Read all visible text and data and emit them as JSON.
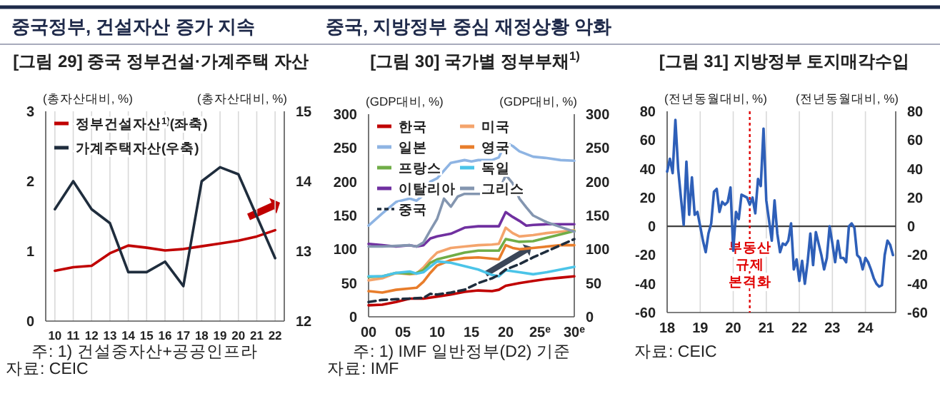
{
  "chart_data": [
    {
      "type": "line",
      "subtitle": "중국정부, 건설자산 증가 지속",
      "title": "[그림 29] 중국 정부건설·가계주택 자산",
      "ylabel": "(총자산대비, %)",
      "y2label": "(총자산대비, %)",
      "categories": [
        "10",
        "11",
        "12",
        "13",
        "14",
        "15",
        "16",
        "17",
        "18",
        "19",
        "20",
        "21",
        "22"
      ],
      "series": [
        {
          "name": "정부건설자산$^{1)}$(좌축)",
          "color": "#c00000",
          "values": [
            0.72,
            0.77,
            0.79,
            0.97,
            1.08,
            1.05,
            1.01,
            1.03,
            1.07,
            1.11,
            1.15,
            1.21,
            1.3
          ]
        },
        {
          "name": "가계주택자산(우축)",
          "color": "#1f2d3d",
          "axis": "y2",
          "values": [
            13.6,
            14.0,
            13.6,
            13.4,
            12.7,
            12.7,
            12.85,
            12.5,
            14.0,
            14.2,
            14.1,
            13.5,
            12.9
          ]
        }
      ],
      "ylim": [
        0,
        3
      ],
      "yticks": [
        0,
        1,
        2,
        3
      ],
      "y2lim": [
        12,
        15
      ],
      "y2ticks": [
        12,
        13,
        14,
        15
      ],
      "grid": "x",
      "legend": "top left",
      "annotations": [
        "주: 1) 건설중자산+공공인프라",
        "자료: CEIC"
      ]
    },
    {
      "type": "line",
      "subtitle": "중국, 지방정부 중심 재정상황 악화",
      "title": "[그림 30] 국가별 정부부채$^{1)}$",
      "ylabel": "(GDP대비, %)",
      "y2label": "(GDP대비, %)",
      "xlim": [
        0,
        30
      ],
      "xticks": [
        {
          "value": 0,
          "label": "00"
        },
        {
          "value": 5,
          "label": "05"
        },
        10,
        15,
        20,
        {
          "value": 25,
          "label": "25$^{e}$"
        },
        {
          "value": 30,
          "label": "30$^{e}$"
        }
      ],
      "series": [
        {
          "name": "한국",
          "color": "#c00000",
          "x": [
            0,
            2,
            4,
            6,
            8,
            10,
            12,
            14,
            16,
            18,
            19,
            20,
            22,
            24,
            26,
            28,
            30
          ],
          "values": [
            17,
            18,
            22,
            27,
            27,
            30,
            33,
            37,
            39,
            38,
            40,
            46,
            50,
            53,
            56,
            58,
            60
          ]
        },
        {
          "name": "미국",
          "color": "#f4a46c",
          "x": [
            0,
            2,
            4,
            6,
            7,
            8,
            9,
            10,
            12,
            14,
            16,
            18,
            19,
            20,
            21,
            22,
            24,
            26,
            28,
            30
          ],
          "values": [
            54,
            57,
            65,
            63,
            64,
            73,
            85,
            95,
            102,
            104,
            106,
            107,
            108,
            132,
            124,
            119,
            121,
            124,
            126,
            128
          ]
        },
        {
          "name": "일본",
          "color": "#8eb4e3",
          "x": [
            0,
            2,
            4,
            6,
            7,
            8,
            9,
            10,
            12,
            14,
            15,
            16,
            18,
            19,
            20,
            21,
            22,
            24,
            26,
            28,
            30
          ],
          "values": [
            135,
            153,
            170,
            175,
            172,
            180,
            200,
            205,
            228,
            232,
            230,
            232,
            232,
            236,
            258,
            253,
            245,
            237,
            235,
            232,
            231
          ]
        },
        {
          "name": "영국",
          "color": "#e87d2b",
          "x": [
            0,
            2,
            4,
            6,
            7,
            8,
            9,
            10,
            12,
            14,
            16,
            18,
            19,
            20,
            21,
            22,
            24,
            26,
            28,
            30
          ],
          "values": [
            38,
            36,
            40,
            42,
            43,
            52,
            65,
            76,
            84,
            87,
            88,
            86,
            85,
            106,
            102,
            100,
            102,
            104,
            106,
            106
          ]
        },
        {
          "name": "프랑스",
          "color": "#70ad47",
          "x": [
            0,
            2,
            4,
            6,
            7,
            8,
            9,
            10,
            12,
            14,
            16,
            18,
            19,
            20,
            21,
            22,
            24,
            26,
            28,
            30
          ],
          "values": [
            59,
            60,
            65,
            64,
            65,
            69,
            80,
            85,
            90,
            95,
            98,
            98,
            98,
            115,
            113,
            111,
            112,
            117,
            122,
            127
          ]
        },
        {
          "name": "독일",
          "color": "#4bc4e8",
          "x": [
            0,
            2,
            4,
            6,
            7,
            8,
            9,
            10,
            12,
            14,
            16,
            18,
            19,
            20,
            22,
            24,
            26,
            28,
            30
          ],
          "values": [
            60,
            60,
            65,
            67,
            64,
            66,
            74,
            82,
            80,
            75,
            70,
            62,
            60,
            69,
            66,
            63,
            66,
            70,
            74
          ]
        },
        {
          "name": "이탈리아",
          "color": "#7030a0",
          "x": [
            0,
            2,
            4,
            6,
            7,
            8,
            9,
            10,
            12,
            14,
            16,
            18,
            19,
            20,
            21,
            22,
            23,
            24,
            26,
            28,
            30
          ],
          "values": [
            108,
            106,
            104,
            106,
            104,
            106,
            116,
            119,
            123,
            132,
            134,
            134,
            134,
            155,
            148,
            142,
            135,
            136,
            137,
            137,
            137
          ]
        },
        {
          "name": "그리스",
          "color": "#8496b0",
          "x": [
            0,
            2,
            4,
            6,
            7,
            8,
            9,
            10,
            11,
            12,
            13,
            14,
            16,
            17,
            18,
            19,
            20,
            21,
            22,
            23,
            24,
            26,
            28,
            30
          ],
          "values": [
            104,
            104,
            105,
            106,
            104,
            110,
            128,
            145,
            175,
            163,
            178,
            182,
            182,
            182,
            190,
            185,
            210,
            198,
            175,
            162,
            150,
            140,
            133,
            126
          ]
        },
        {
          "name": "중국",
          "color": "#1f2d3d",
          "line_style": "dashed",
          "x": [
            0,
            2,
            4,
            6,
            8,
            9,
            10,
            12,
            14,
            16,
            18,
            19,
            20,
            22,
            24,
            26,
            28,
            30
          ],
          "values": [
            22,
            25,
            26,
            27,
            28,
            34,
            33,
            36,
            40,
            50,
            57,
            62,
            70,
            78,
            88,
            97,
            106,
            115
          ]
        }
      ],
      "ylim": [
        0,
        300
      ],
      "yticks": [
        0,
        50,
        100,
        150,
        200,
        250,
        300
      ],
      "y2lim": [
        0,
        300
      ],
      "y2ticks": [
        0,
        50,
        100,
        150,
        200,
        250,
        300
      ],
      "legend": "top left",
      "annotations": [
        "주: 1) IMF 일반정부(D2) 기준",
        "자료: IMF"
      ]
    },
    {
      "type": "line",
      "title": "[그림 31] 지방정부 토지매각수입",
      "ylabel": "(전년동월대비, %)",
      "y2label": "(전년동월대비, %)",
      "x": [
        "2018-01",
        "2018-02",
        "2018-03",
        "2018-04",
        "2018-05",
        "2018-06",
        "2018-07",
        "2018-08",
        "2018-09",
        "2018-10",
        "2018-11",
        "2018-12",
        "2019-01",
        "2019-02",
        "2019-03",
        "2019-04",
        "2019-05",
        "2019-06",
        "2019-07",
        "2019-08",
        "2019-09",
        "2019-10",
        "2019-11",
        "2019-12",
        "2020-01",
        "2020-02",
        "2020-03",
        "2020-04",
        "2020-05",
        "2020-06",
        "2020-07",
        "2020-08",
        "2020-09",
        "2020-10",
        "2020-11",
        "2020-12",
        "2021-01",
        "2021-02",
        "2021-03",
        "2021-04",
        "2021-05",
        "2021-06",
        "2021-07",
        "2021-08",
        "2021-09",
        "2021-10",
        "2021-11",
        "2021-12",
        "2022-01",
        "2022-02",
        "2022-03",
        "2022-04",
        "2022-05",
        "2022-06",
        "2022-07",
        "2022-08",
        "2022-09",
        "2022-10",
        "2022-11",
        "2022-12",
        "2023-01",
        "2023-02",
        "2023-03",
        "2023-04",
        "2023-05",
        "2023-06",
        "2023-07",
        "2023-08",
        "2023-09",
        "2023-10",
        "2023-11",
        "2023-12",
        "2024-01",
        "2024-02",
        "2024-03",
        "2024-04",
        "2024-05",
        "2024-06",
        "2024-07",
        "2024-08",
        "2024-09",
        "2024-10",
        "2024-11"
      ],
      "series": [
        {
          "color": "#2e5fb8",
          "values": [
            38,
            47,
            37,
            74,
            40,
            20,
            1,
            45,
            8,
            34,
            8,
            10,
            0,
            -10,
            -18,
            -5,
            2,
            24,
            26,
            10,
            17,
            15,
            17,
            27,
            -17,
            10,
            5,
            22,
            21,
            20,
            15,
            20,
            9,
            33,
            28,
            68,
            18,
            4,
            -10,
            18,
            -5,
            -18,
            -12,
            -13,
            -10,
            2,
            -30,
            -23,
            -38,
            -24,
            -40,
            -25,
            -5,
            -27,
            -4,
            -12,
            -20,
            -30,
            -22,
            0,
            -12,
            -25,
            -10,
            -22,
            -22,
            -25,
            0,
            2,
            -1,
            -20,
            -22,
            -30,
            -22,
            -25,
            -30,
            -36,
            -40,
            -42,
            -41,
            -20,
            -10,
            -13,
            -20
          ]
        }
      ],
      "xlim": [
        "2018-01",
        "2024-12"
      ],
      "xticks": [
        {
          "value": "2018-01",
          "label": "18"
        },
        {
          "value": "2019-01",
          "label": "19"
        },
        {
          "value": "2020-01",
          "label": "20"
        },
        {
          "value": "2021-01",
          "label": "21"
        },
        {
          "value": "2022-01",
          "label": "22"
        },
        {
          "value": "2023-01",
          "label": "23"
        },
        {
          "value": "2024-01",
          "label": "24"
        }
      ],
      "ylim": [
        -60,
        80
      ],
      "yticks": [
        -60,
        -40,
        -20,
        0,
        20,
        40,
        60,
        80
      ],
      "y2lim": [
        -60,
        80
      ],
      "y2ticks": [
        -60,
        -40,
        -20,
        0,
        20,
        40,
        60,
        80
      ],
      "grid": "x",
      "ref_lines": [
        {
          "axis": "y",
          "value": 0,
          "color": "#404040"
        },
        {
          "axis": "x",
          "value": "2020-07",
          "label": "부동산\n규제\n본격화",
          "color": "#e00000",
          "line_style": "dotted"
        }
      ],
      "annotations": [
        "자료: CEIC"
      ]
    }
  ]
}
